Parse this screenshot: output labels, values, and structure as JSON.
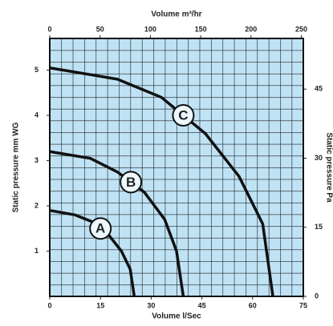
{
  "chart_data": {
    "type": "line",
    "x_label": "Volume l/Sec",
    "x2_label": "Volume m³/hr",
    "y_label": "Static pressure mm WG",
    "y2_label": "Static pressure Pa",
    "xlim": [
      0,
      75
    ],
    "xticks": [
      0,
      15,
      30,
      45,
      60,
      75
    ],
    "x2lim": [
      0,
      252
    ],
    "x2ticks": [
      0,
      50,
      100,
      150,
      200,
      250
    ],
    "ylim": [
      0,
      5.7
    ],
    "yticks": [
      1,
      2,
      3,
      4,
      5
    ],
    "y2lim": [
      0,
      56
    ],
    "y2ticks": [
      0,
      15,
      30,
      45
    ],
    "color": "#111",
    "background": "#bfe3f5",
    "series": [
      {
        "name": "A",
        "x": [
          0,
          7.5,
          12.5,
          17.5,
          21.2,
          23.8,
          25
        ],
        "values": [
          1.9,
          1.8,
          1.65,
          1.35,
          1.0,
          0.6,
          0
        ]
      },
      {
        "name": "B",
        "x": [
          0,
          12,
          20,
          28,
          34,
          37.5,
          39.5
        ],
        "values": [
          3.2,
          3.05,
          2.75,
          2.3,
          1.7,
          1.0,
          0
        ]
      },
      {
        "name": "C",
        "x": [
          0,
          20,
          33,
          46,
          56,
          63,
          66
        ],
        "values": [
          5.05,
          4.8,
          4.4,
          3.6,
          2.65,
          1.6,
          0
        ]
      }
    ]
  }
}
